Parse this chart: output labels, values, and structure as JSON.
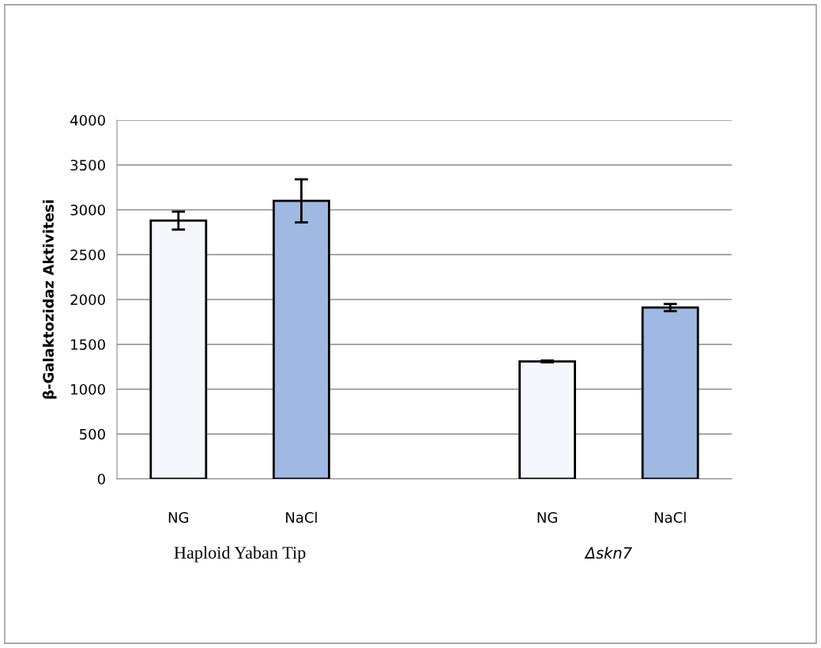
{
  "chart_data": {
    "type": "bar",
    "ylabel": "β-Galaktozidaz Aktivitesi",
    "categories": [
      "NG",
      "NaCl",
      null,
      "NG",
      "NaCl"
    ],
    "values": [
      2880,
      3100,
      null,
      1310,
      1910
    ],
    "errors": [
      100,
      240,
      null,
      10,
      40
    ],
    "colors": [
      "#f4f7fc",
      "#9fb9e2",
      "#ffffff",
      "#f4f7fc",
      "#9fb9e2"
    ],
    "ylim": [
      0,
      4000
    ],
    "yticks": [
      0,
      500,
      1000,
      1500,
      2000,
      2500,
      3000,
      3500,
      4000
    ],
    "grid": "y",
    "annotations": [
      "Haploid Yaban Tip",
      "Δskn7"
    ]
  }
}
